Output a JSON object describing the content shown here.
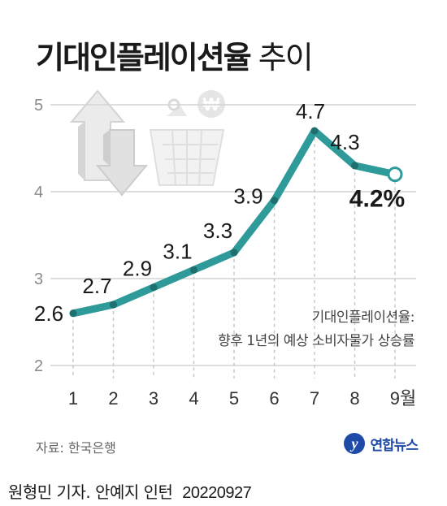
{
  "title": {
    "main": "기대인플레이션율",
    "suffix": "추이"
  },
  "chart_data": {
    "type": "line",
    "categories": [
      "1",
      "2",
      "3",
      "4",
      "5",
      "6",
      "7",
      "8",
      "9월"
    ],
    "values": [
      2.6,
      2.7,
      2.9,
      3.1,
      3.3,
      3.9,
      4.7,
      4.3,
      4.2
    ],
    "data_labels": [
      "2.6",
      "2.7",
      "2.9",
      "3.1",
      "3.3",
      "3.9",
      "4.7",
      "4.3",
      "4.2%"
    ],
    "yticks": [
      "2",
      "3",
      "4",
      "5"
    ],
    "ylim": [
      2,
      5
    ],
    "line_color": "#2e9a9a",
    "grid": "horizontal",
    "annotation": [
      "기대인플레이션율:",
      "향후 1년의 예상 소비자물가 상승률"
    ]
  },
  "source": "자료: 한국은행",
  "logo": {
    "mark": "y",
    "name": "연합뉴스",
    "color": "#1f4aa8"
  },
  "byline": {
    "credit": "원형민 기자. 안예지 인턴",
    "date": "20220927"
  },
  "illustration": {
    "icon": "shopping-basket-with-updown-arrows-icon",
    "symbol": "₩"
  }
}
